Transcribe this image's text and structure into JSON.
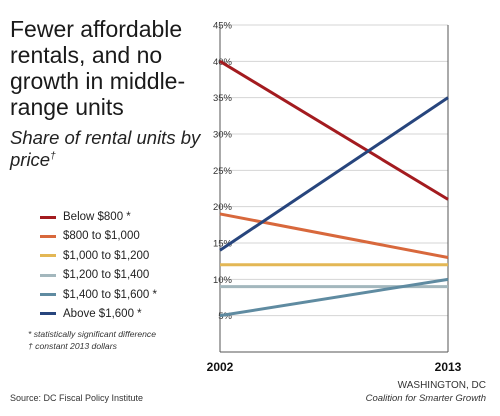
{
  "title": "Fewer affordable rentals, and no growth in middle-range units",
  "subtitle": "Share of rental units by price",
  "subtitle_mark": "†",
  "notes": [
    "* statistically significant difference",
    "† constant 2013 dollars"
  ],
  "source": "Source: DC Fiscal Policy Institute",
  "credit": {
    "location": "WASHINGTON, DC",
    "org": "Coalition for Smarter Growth"
  },
  "chart_data": {
    "type": "line",
    "x": [
      "2002",
      "2013"
    ],
    "ylim": [
      0,
      45
    ],
    "yticks": [
      5,
      10,
      15,
      20,
      25,
      30,
      35,
      40,
      45
    ],
    "ytick_labels": [
      "5%",
      "10%",
      "15%",
      "20%",
      "25%",
      "30%",
      "35%",
      "40%",
      "45%"
    ],
    "grid": true,
    "legend_placement": "left",
    "series": [
      {
        "name": "Below $800 *",
        "color": "#a31b1f",
        "values": [
          40,
          21
        ]
      },
      {
        "name": "$800 to $1,000",
        "color": "#d8683c",
        "values": [
          19,
          13
        ]
      },
      {
        "name": "$1,000 to $1,200",
        "color": "#e3b755",
        "values": [
          12,
          12
        ]
      },
      {
        "name": "$1,200 to $1,400",
        "color": "#a3b7bd",
        "values": [
          9,
          9
        ]
      },
      {
        "name": "$1,400 to $1,600 *",
        "color": "#5f8ba1",
        "values": [
          5,
          10
        ]
      },
      {
        "name": "Above $1,600 *",
        "color": "#27457d",
        "values": [
          14,
          35
        ]
      }
    ]
  }
}
